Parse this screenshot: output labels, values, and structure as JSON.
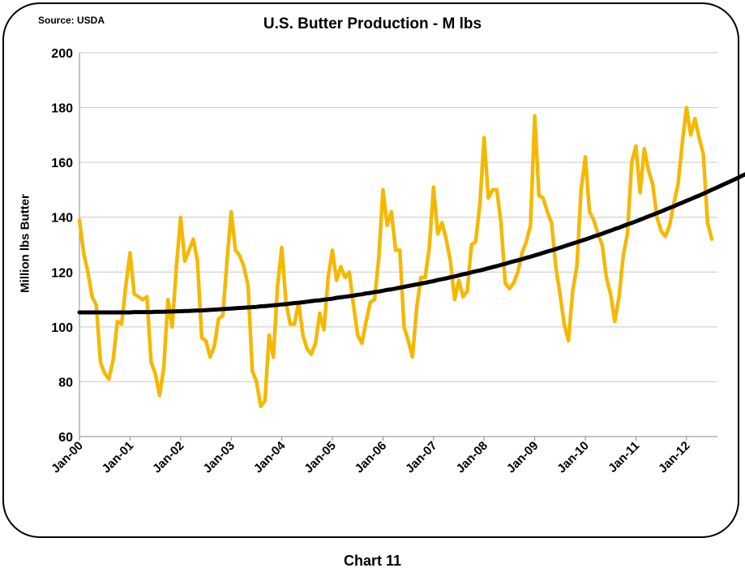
{
  "caption": "Chart 11",
  "chart_data": {
    "type": "line",
    "title": "U.S. Butter Production - M lbs",
    "source_note": "Source: USDA",
    "xlabel": "",
    "ylabel": "Million lbs Butter",
    "ylim": [
      60,
      200
    ],
    "yticks": [
      60,
      80,
      100,
      120,
      140,
      160,
      180,
      200
    ],
    "x_tick_labels": [
      "Jan-00",
      "Jan-01",
      "Jan-02",
      "Jan-03",
      "Jan-04",
      "Jan-05",
      "Jan-06",
      "Jan-07",
      "Jan-08",
      "Jan-09",
      "Jan-10",
      "Jan-11",
      "Jan-12"
    ],
    "x_start": "Jan-00",
    "x_frequency": "monthly",
    "grid": true,
    "legend": "none",
    "series": [
      {
        "color": "#F5B800",
        "values": [
          139,
          127,
          120,
          111,
          108,
          87,
          83,
          81,
          88,
          102,
          101,
          115,
          127,
          112,
          111,
          110,
          111,
          87,
          83,
          75,
          85,
          110,
          100,
          122,
          140,
          124,
          128,
          132,
          124,
          96,
          95,
          89,
          93,
          103,
          104,
          124,
          142,
          128,
          126,
          122,
          115,
          84,
          80,
          71,
          73,
          97,
          89,
          115,
          129,
          109,
          101,
          101,
          109,
          97,
          92,
          90,
          94,
          105,
          99,
          118,
          128,
          117,
          122,
          118,
          120,
          108,
          97,
          94,
          102,
          109,
          110,
          125,
          150,
          137,
          142,
          128,
          128,
          100,
          95,
          89,
          107,
          118,
          118,
          129,
          151,
          134,
          138,
          132,
          124,
          110,
          117,
          111,
          113,
          130,
          131,
          145,
          169,
          147,
          150,
          150,
          138,
          116,
          114,
          116,
          120,
          127,
          131,
          137,
          177,
          148,
          147,
          142,
          138,
          122,
          112,
          101,
          95,
          113,
          122,
          150,
          162,
          142,
          139,
          134,
          130,
          118,
          112,
          102,
          111,
          126,
          134,
          160,
          166,
          149,
          165,
          157,
          152,
          140,
          135,
          133,
          137,
          145,
          152,
          167,
          180,
          170,
          176,
          169,
          163,
          138,
          132
        ]
      },
      {
        "color": "#000000",
        "trend": "polynomial",
        "values": [
          105.3,
          105.3,
          105.3,
          105.3,
          105.3,
          105.3,
          105.3,
          105.3,
          105.3,
          105.3,
          105.3,
          105.3,
          105.3,
          105.4,
          105.4,
          105.4,
          105.4,
          105.4,
          105.5,
          105.5,
          105.5,
          105.6,
          105.6,
          105.7,
          105.7,
          105.8,
          105.8,
          105.9,
          106.0,
          106.0,
          106.1,
          106.2,
          106.3,
          106.4,
          106.5,
          106.6,
          106.7,
          106.8,
          106.9,
          107.0,
          107.1,
          107.2,
          107.3,
          107.5,
          107.6,
          107.7,
          107.9,
          108.0,
          108.2,
          108.3,
          108.5,
          108.7,
          108.8,
          109.0,
          109.2,
          109.4,
          109.6,
          109.7,
          109.9,
          110.1,
          110.3,
          110.6,
          110.8,
          111.0,
          111.2,
          111.4,
          111.7,
          111.9,
          112.2,
          112.4,
          112.7,
          112.9,
          113.2,
          113.5,
          113.7,
          114.0,
          114.3,
          114.6,
          114.9,
          115.2,
          115.5,
          115.8,
          116.1,
          116.4,
          116.7,
          117.1,
          117.4,
          117.7,
          118.1,
          118.4,
          118.8,
          119.2,
          119.5,
          119.9,
          120.3,
          120.6,
          121.0,
          121.4,
          121.8,
          122.2,
          122.6,
          123.0,
          123.5,
          123.9,
          124.3,
          124.7,
          125.2,
          125.6,
          126.1,
          126.5,
          127.0,
          127.5,
          127.9,
          128.4,
          128.9,
          129.4,
          129.9,
          130.4,
          130.9,
          131.4,
          131.9,
          132.4,
          133.0,
          133.5,
          134.0,
          134.6,
          135.1,
          135.7,
          136.2,
          136.8,
          137.4,
          137.9,
          138.5,
          139.1,
          139.7,
          140.3,
          140.9,
          141.5,
          142.1,
          142.8,
          143.4,
          144.0,
          144.7,
          145.3,
          146.0,
          146.6,
          147.3,
          147.9,
          148.6,
          149.3,
          150.0,
          150.7,
          151.4,
          152.1,
          152.8,
          153.5,
          154.2,
          155.0,
          155.7,
          156.4,
          157.2
        ]
      }
    ]
  }
}
